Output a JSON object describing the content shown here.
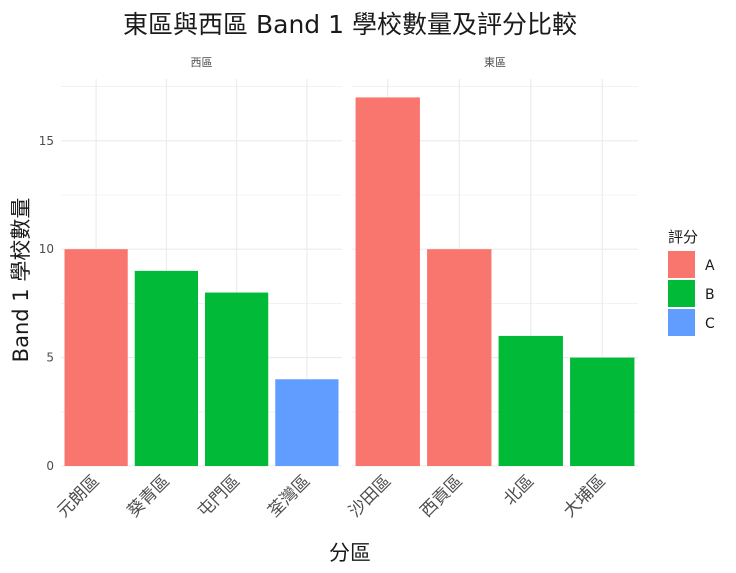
{
  "chart_data": {
    "type": "bar",
    "title": "東區與西區 Band 1 學校數量及評分比較",
    "xlabel": "分區",
    "ylabel": "Band 1 學校數量",
    "ylim": [
      0,
      17.85
    ],
    "yticks": [
      0,
      5,
      10,
      15
    ],
    "grid": true,
    "legend": {
      "title": "評分",
      "position": "right",
      "entries": [
        {
          "label": "A",
          "color": "#F8766D"
        },
        {
          "label": "B",
          "color": "#00BA38"
        },
        {
          "label": "C",
          "color": "#619CFF"
        }
      ]
    },
    "panels": [
      {
        "name": "西區",
        "categories": [
          "元朗區",
          "葵青區",
          "屯門區",
          "荃灣區"
        ],
        "values": [
          10,
          9,
          8,
          4
        ],
        "ratings": [
          "A",
          "B",
          "B",
          "C"
        ]
      },
      {
        "name": "東區",
        "categories": [
          "沙田區",
          "西貢區",
          "北區",
          "大埔區"
        ],
        "values": [
          17,
          10,
          6,
          5
        ],
        "ratings": [
          "A",
          "A",
          "B",
          "B"
        ]
      }
    ]
  }
}
